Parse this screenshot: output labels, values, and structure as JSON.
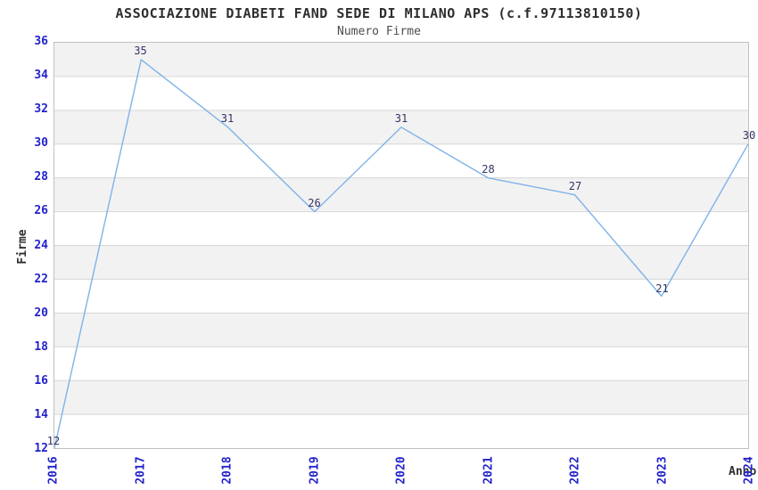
{
  "chart_data": {
    "type": "line",
    "title": "ASSOCIAZIONE DIABETI FAND SEDE DI MILANO APS (c.f.97113810150)",
    "subtitle": "Numero Firme",
    "xlabel": "Anno",
    "ylabel": "Firme",
    "categories": [
      "2016",
      "2017",
      "2018",
      "2019",
      "2020",
      "2021",
      "2022",
      "2023",
      "2024"
    ],
    "values": [
      12,
      35,
      31,
      26,
      31,
      28,
      27,
      21,
      30
    ],
    "series": [
      {
        "name": "Numero Firme",
        "values": [
          12,
          35,
          31,
          26,
          31,
          28,
          27,
          21,
          30
        ]
      }
    ],
    "ylim": [
      12,
      36
    ],
    "ytick_step": 2,
    "yticks": [
      12,
      14,
      16,
      18,
      20,
      22,
      24,
      26,
      28,
      30,
      32,
      34,
      36
    ],
    "grid": "horizontal gridlines with alternating shaded bands every 2 units",
    "legend": "none",
    "data_labels_visible": true,
    "x_tick_rotation_degrees": 90,
    "colors": {
      "line": "#7fb2e8",
      "tick_label": "#2222cc",
      "data_label": "#333366",
      "band": "#f2f2f2",
      "grid": "#d6d6d6",
      "border": "#c0c0c0",
      "title": "#2e2e2e",
      "subtitle": "#4d4d4d",
      "axis_title": "#2e2e2e",
      "background": "#ffffff"
    }
  }
}
